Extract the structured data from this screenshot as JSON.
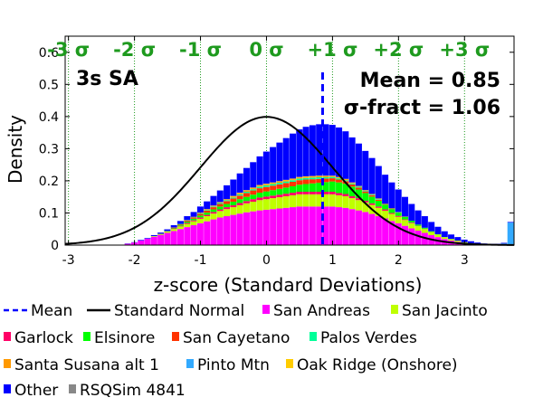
{
  "chart_data": {
    "type": "bar",
    "stacked": true,
    "annotation_label": "3s SA",
    "mean_label": "Mean = 0.85",
    "sigma_label": "σ-fract = 1.06",
    "xlabel": "z-score (Standard Deviations)",
    "ylabel": "Density",
    "xlim": [
      -3.05,
      3.75
    ],
    "ylim": [
      0,
      0.65
    ],
    "x_ticks": [
      -3,
      -2,
      -1,
      0,
      1,
      2,
      3
    ],
    "y_ticks": [
      0,
      0.1,
      0.2,
      0.3,
      0.4,
      0.5,
      0.6
    ],
    "sigma_labels": [
      {
        "x": -3,
        "text": "-3 σ"
      },
      {
        "x": -2,
        "text": "-2 σ"
      },
      {
        "x": -1,
        "text": "-1 σ"
      },
      {
        "x": 0,
        "text": "0 σ"
      },
      {
        "x": 1,
        "text": "+1 σ"
      },
      {
        "x": 2,
        "text": "+2 σ"
      },
      {
        "x": 3,
        "text": "+3 σ"
      }
    ],
    "mean": 0.85,
    "legend_position": "bottom",
    "bins": {
      "start": -3.05,
      "width": 0.1
    },
    "series": [
      {
        "name": "San Andreas",
        "color": "#ff00ff",
        "values": [
          0,
          0,
          0,
          0,
          0,
          0,
          0,
          0,
          0,
          0.004,
          0.008,
          0.014,
          0.02,
          0.026,
          0.032,
          0.038,
          0.044,
          0.05,
          0.056,
          0.062,
          0.068,
          0.074,
          0.08,
          0.086,
          0.09,
          0.094,
          0.098,
          0.102,
          0.105,
          0.108,
          0.11,
          0.112,
          0.114,
          0.116,
          0.118,
          0.12,
          0.12,
          0.12,
          0.12,
          0.12,
          0.12,
          0.118,
          0.116,
          0.112,
          0.108,
          0.103,
          0.097,
          0.09,
          0.083,
          0.075,
          0.068,
          0.06,
          0.052,
          0.045,
          0.038,
          0.031,
          0.025,
          0.019,
          0.014,
          0.01,
          0.006,
          0.004,
          0.002,
          0.001,
          0,
          0,
          0,
          0
        ]
      },
      {
        "name": "San Jacinto",
        "color": "#bfff00",
        "values": [
          0,
          0,
          0,
          0,
          0,
          0,
          0,
          0,
          0,
          0,
          0,
          0,
          0,
          0.002,
          0.003,
          0.004,
          0.006,
          0.008,
          0.01,
          0.012,
          0.014,
          0.016,
          0.018,
          0.02,
          0.022,
          0.024,
          0.026,
          0.028,
          0.03,
          0.032,
          0.033,
          0.034,
          0.035,
          0.036,
          0.037,
          0.038,
          0.038,
          0.038,
          0.038,
          0.038,
          0.038,
          0.037,
          0.036,
          0.034,
          0.032,
          0.03,
          0.028,
          0.026,
          0.024,
          0.022,
          0.02,
          0.018,
          0.016,
          0.014,
          0.012,
          0.01,
          0.008,
          0.006,
          0.005,
          0.004,
          0.003,
          0.002,
          0.001,
          0,
          0,
          0,
          0,
          0
        ]
      },
      {
        "name": "Garlock",
        "color": "#ff0066",
        "values": [
          0,
          0,
          0,
          0,
          0,
          0,
          0,
          0,
          0,
          0,
          0,
          0,
          0,
          0,
          0,
          0.001,
          0.002,
          0.002,
          0.003,
          0.003,
          0.004,
          0.004,
          0.005,
          0.005,
          0.006,
          0.006,
          0.007,
          0.007,
          0.008,
          0.008,
          0.008,
          0.008,
          0.008,
          0.008,
          0.008,
          0.008,
          0.008,
          0.008,
          0.008,
          0.008,
          0.008,
          0.007,
          0.007,
          0.006,
          0.006,
          0.005,
          0.005,
          0.004,
          0.004,
          0.003,
          0.003,
          0.002,
          0.002,
          0.001,
          0.001,
          0,
          0,
          0,
          0,
          0,
          0,
          0,
          0,
          0,
          0,
          0,
          0,
          0
        ]
      },
      {
        "name": "Elsinore",
        "color": "#00ff00",
        "values": [
          0,
          0,
          0,
          0,
          0,
          0,
          0,
          0,
          0,
          0,
          0,
          0,
          0,
          0,
          0,
          0.001,
          0.002,
          0.003,
          0.004,
          0.005,
          0.006,
          0.007,
          0.008,
          0.009,
          0.01,
          0.011,
          0.012,
          0.013,
          0.014,
          0.015,
          0.016,
          0.017,
          0.018,
          0.019,
          0.02,
          0.022,
          0.024,
          0.026,
          0.028,
          0.03,
          0.032,
          0.033,
          0.032,
          0.03,
          0.027,
          0.024,
          0.021,
          0.018,
          0.015,
          0.012,
          0.01,
          0.008,
          0.006,
          0.004,
          0.003,
          0.002,
          0.001,
          0,
          0,
          0,
          0,
          0,
          0,
          0,
          0,
          0,
          0,
          0
        ]
      },
      {
        "name": "San Cayetano",
        "color": "#ff3300",
        "values": [
          0,
          0,
          0,
          0,
          0,
          0,
          0,
          0,
          0,
          0,
          0,
          0,
          0,
          0,
          0,
          0,
          0.001,
          0.002,
          0.003,
          0.004,
          0.005,
          0.006,
          0.007,
          0.008,
          0.009,
          0.01,
          0.011,
          0.012,
          0.013,
          0.014,
          0.014,
          0.014,
          0.014,
          0.014,
          0.014,
          0.014,
          0.014,
          0.013,
          0.012,
          0.011,
          0.01,
          0.009,
          0.008,
          0.007,
          0.006,
          0.005,
          0.004,
          0.003,
          0.002,
          0.002,
          0.001,
          0.001,
          0,
          0,
          0,
          0,
          0,
          0,
          0,
          0,
          0,
          0,
          0,
          0,
          0,
          0,
          0,
          0
        ]
      },
      {
        "name": "Palos Verdes",
        "color": "#00ff99",
        "values": [
          0,
          0,
          0,
          0,
          0,
          0,
          0,
          0,
          0,
          0,
          0,
          0,
          0,
          0,
          0,
          0,
          0,
          0.001,
          0.001,
          0.001,
          0.002,
          0.002,
          0.002,
          0.003,
          0.003,
          0.003,
          0.004,
          0.004,
          0.004,
          0.005,
          0.005,
          0.005,
          0.005,
          0.005,
          0.005,
          0.005,
          0.005,
          0.005,
          0.005,
          0.004,
          0.004,
          0.004,
          0.003,
          0.003,
          0.003,
          0.002,
          0.002,
          0.002,
          0.001,
          0.001,
          0.001,
          0,
          0,
          0,
          0,
          0,
          0,
          0,
          0,
          0,
          0,
          0,
          0,
          0,
          0,
          0,
          0,
          0
        ]
      },
      {
        "name": "Santa Susana alt 1",
        "color": "#ff9900",
        "values": [
          0,
          0,
          0,
          0,
          0,
          0,
          0,
          0,
          0,
          0,
          0,
          0,
          0,
          0,
          0,
          0,
          0,
          0,
          0.001,
          0.001,
          0.001,
          0.002,
          0.002,
          0.002,
          0.002,
          0.003,
          0.003,
          0.003,
          0.003,
          0.003,
          0.003,
          0.003,
          0.003,
          0.003,
          0.003,
          0.003,
          0.003,
          0.003,
          0.003,
          0.003,
          0.002,
          0.002,
          0.002,
          0.002,
          0.001,
          0.001,
          0.001,
          0.001,
          0,
          0,
          0,
          0,
          0,
          0,
          0,
          0,
          0,
          0,
          0,
          0,
          0,
          0,
          0,
          0,
          0,
          0,
          0,
          0
        ]
      },
      {
        "name": "Pinto Mtn",
        "color": "#33aaff",
        "values": [
          0,
          0,
          0,
          0,
          0,
          0,
          0,
          0,
          0,
          0,
          0,
          0,
          0,
          0,
          0,
          0,
          0,
          0,
          0,
          0,
          0,
          0,
          0,
          0,
          0,
          0,
          0,
          0,
          0,
          0,
          0,
          0,
          0,
          0,
          0,
          0,
          0,
          0,
          0,
          0,
          0,
          0,
          0,
          0,
          0,
          0,
          0,
          0,
          0,
          0,
          0,
          0,
          0,
          0,
          0,
          0,
          0,
          0,
          0,
          0,
          0,
          0,
          0,
          0,
          0.001,
          0.002,
          0.005,
          0.07
        ]
      },
      {
        "name": "Oak Ridge (Onshore)",
        "color": "#ffcc00",
        "values": [
          0,
          0,
          0,
          0,
          0,
          0,
          0,
          0,
          0,
          0,
          0,
          0,
          0,
          0,
          0,
          0,
          0,
          0,
          0,
          0,
          0.001,
          0.001,
          0.001,
          0.001,
          0.001,
          0.002,
          0.002,
          0.002,
          0.002,
          0.002,
          0.002,
          0.002,
          0.002,
          0.002,
          0.002,
          0.002,
          0.002,
          0.002,
          0.002,
          0.002,
          0.002,
          0.002,
          0.002,
          0.001,
          0.001,
          0.001,
          0.001,
          0.001,
          0,
          0,
          0,
          0,
          0,
          0,
          0,
          0,
          0,
          0,
          0,
          0,
          0,
          0,
          0,
          0,
          0,
          0,
          0,
          0
        ]
      },
      {
        "name": "Other",
        "color": "#0000ff",
        "values": [
          0,
          0,
          0,
          0,
          0,
          0,
          0,
          0,
          0,
          0.001,
          0.001,
          0.002,
          0.002,
          0.003,
          0.004,
          0.005,
          0.007,
          0.009,
          0.012,
          0.015,
          0.019,
          0.024,
          0.03,
          0.036,
          0.043,
          0.051,
          0.06,
          0.069,
          0.079,
          0.089,
          0.1,
          0.11,
          0.12,
          0.13,
          0.14,
          0.148,
          0.154,
          0.158,
          0.16,
          0.16,
          0.158,
          0.154,
          0.148,
          0.14,
          0.132,
          0.122,
          0.112,
          0.101,
          0.09,
          0.08,
          0.07,
          0.061,
          0.052,
          0.044,
          0.036,
          0.029,
          0.023,
          0.018,
          0.014,
          0.011,
          0.008,
          0.006,
          0.005,
          0.004,
          0.003,
          0.002,
          0.002,
          0.002
        ]
      },
      {
        "name": "RSQSim 4841",
        "color": "#888888",
        "values": [
          0,
          0,
          0,
          0,
          0,
          0,
          0,
          0,
          0,
          0,
          0,
          0,
          0,
          0,
          0,
          0,
          0,
          0,
          0,
          0,
          0,
          0,
          0,
          0,
          0,
          0,
          0,
          0,
          0,
          0,
          0,
          0,
          0,
          0,
          0,
          0,
          0,
          0,
          0,
          0,
          0,
          0,
          0,
          0,
          0,
          0,
          0,
          0,
          0,
          0,
          0,
          0,
          0,
          0,
          0,
          0,
          0,
          0,
          0,
          0,
          0,
          0,
          0,
          0,
          0,
          0,
          0,
          0
        ]
      }
    ],
    "overlay": [
      {
        "name": "Mean",
        "color": "#0000ff",
        "style": "dashed"
      },
      {
        "name": "Standard Normal",
        "color": "#000000",
        "style": "solid"
      }
    ]
  }
}
